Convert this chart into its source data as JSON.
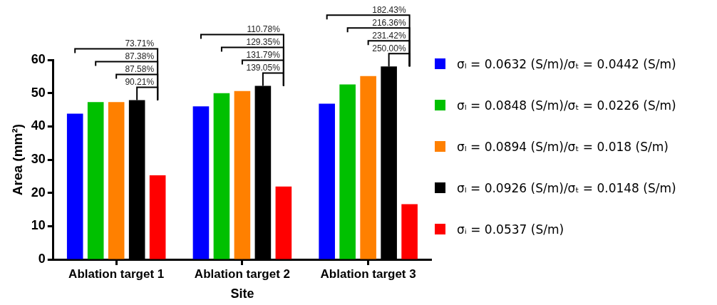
{
  "chart_data": {
    "type": "bar",
    "xlabel": "Site",
    "ylabel": "Area (mm²)",
    "categories": [
      "Ablation target 1",
      "Ablation target 2",
      "Ablation target 3"
    ],
    "series": [
      {
        "name": "σₗ = 0.0632 (S/m)/σₜ = 0.0442 (S/m)",
        "color": "#0000ff",
        "values": [
          43.8,
          46.0,
          46.8
        ]
      },
      {
        "name": "σₗ = 0.0848 (S/m)/σₜ = 0.0226 (S/m)",
        "color": "#00c000",
        "values": [
          47.3,
          50.0,
          52.6
        ]
      },
      {
        "name": "σₗ = 0.0894 (S/m)/σₜ = 0.018 (S/m)",
        "color": "#ff8000",
        "values": [
          47.3,
          50.6,
          55.1
        ]
      },
      {
        "name": "σₗ = 0.0926 (S/m)/σₜ = 0.0148 (S/m)",
        "color": "#000000",
        "values": [
          47.9,
          52.2,
          58.0
        ]
      },
      {
        "name": "σᵢ = 0.0537 (S/m)",
        "color": "#ff0000",
        "values": [
          25.3,
          21.9,
          16.6
        ]
      }
    ],
    "annotations": [
      "90.21%",
      "87.58%",
      "87.38%",
      "73.71%",
      "139.05%",
      "131.79%",
      "129.35%",
      "110.78%",
      "250.00%",
      "231.42%",
      "216.36%",
      "182.43%"
    ],
    "ylim": [
      0,
      60
    ],
    "yticks": [
      0,
      10,
      20,
      30,
      40,
      50,
      60
    ],
    "grid": false,
    "legend": "right"
  }
}
